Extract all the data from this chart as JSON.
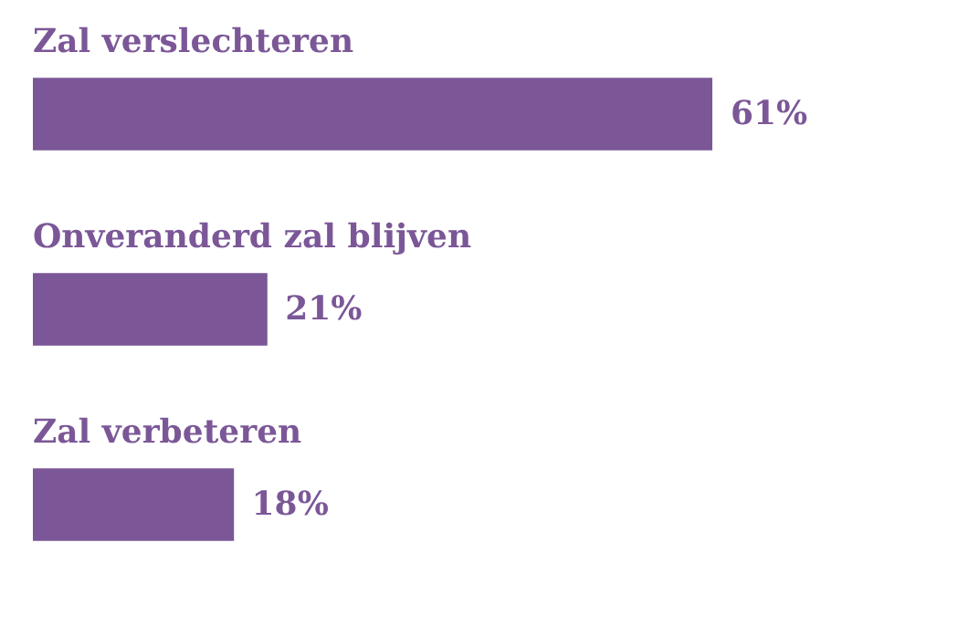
{
  "chart_data": {
    "type": "bar",
    "orientation": "horizontal",
    "categories": [
      "Zal verslechteren",
      "Onveranderd zal blijven",
      "Zal verbeteren"
    ],
    "values": [
      61,
      21,
      18
    ],
    "value_labels": [
      "61%",
      "21%",
      "18%"
    ],
    "color": "#7b5797",
    "legend": false
  }
}
